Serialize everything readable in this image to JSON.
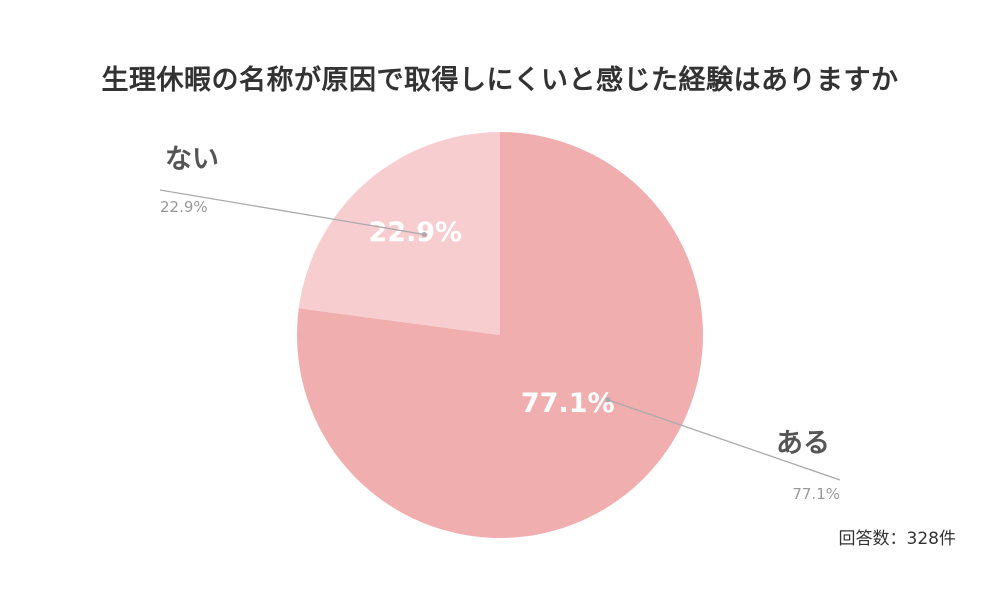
{
  "chart_data": {
    "type": "pie",
    "title": "生理休暇の名称が原因で取得しにくいと感じた経験はありますか",
    "slices": [
      {
        "label": "ある",
        "value": 77.1,
        "display": "77.1%",
        "color": "#f0aeae"
      },
      {
        "label": "ない",
        "value": 22.9,
        "display": "22.9%",
        "color": "#f7cdd0"
      }
    ],
    "legend": "callout labels outside pie",
    "note": "回答数：328件"
  },
  "colors": {
    "inner_label": "#ffffff",
    "callout_label": "#555555",
    "callout_value": "#999999",
    "leader_line": "#aaaaaa"
  }
}
